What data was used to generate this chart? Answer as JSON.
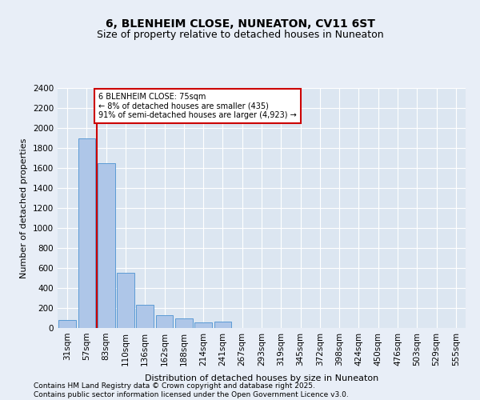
{
  "title": "6, BLENHEIM CLOSE, NUNEATON, CV11 6ST",
  "subtitle": "Size of property relative to detached houses in Nuneaton",
  "xlabel": "Distribution of detached houses by size in Nuneaton",
  "ylabel": "Number of detached properties",
  "footer": "Contains HM Land Registry data © Crown copyright and database right 2025.\nContains public sector information licensed under the Open Government Licence v3.0.",
  "bar_categories": [
    "31sqm",
    "57sqm",
    "83sqm",
    "110sqm",
    "136sqm",
    "162sqm",
    "188sqm",
    "214sqm",
    "241sqm",
    "267sqm",
    "293sqm",
    "319sqm",
    "345sqm",
    "372sqm",
    "398sqm",
    "424sqm",
    "450sqm",
    "476sqm",
    "503sqm",
    "529sqm",
    "555sqm"
  ],
  "bar_values": [
    80,
    1900,
    1650,
    550,
    230,
    130,
    100,
    55,
    65,
    0,
    0,
    0,
    0,
    0,
    0,
    0,
    0,
    0,
    0,
    0,
    0
  ],
  "bar_color": "#aec6e8",
  "bar_edge_color": "#5b9bd5",
  "ylim": [
    0,
    2400
  ],
  "yticks": [
    0,
    200,
    400,
    600,
    800,
    1000,
    1200,
    1400,
    1600,
    1800,
    2000,
    2200,
    2400
  ],
  "vline_pos": 1.5,
  "vline_color": "#cc0000",
  "annotation_box_text": "6 BLENHEIM CLOSE: 75sqm\n← 8% of detached houses are smaller (435)\n91% of semi-detached houses are larger (4,923) →",
  "annotation_box_color": "#cc0000",
  "annotation_box_facecolor": "white",
  "bg_color": "#e8eef7",
  "plot_bg_color": "#dce6f1",
  "grid_color": "#ffffff",
  "title_fontsize": 10,
  "subtitle_fontsize": 9,
  "axis_label_fontsize": 8,
  "tick_fontsize": 7.5,
  "footer_fontsize": 6.5
}
